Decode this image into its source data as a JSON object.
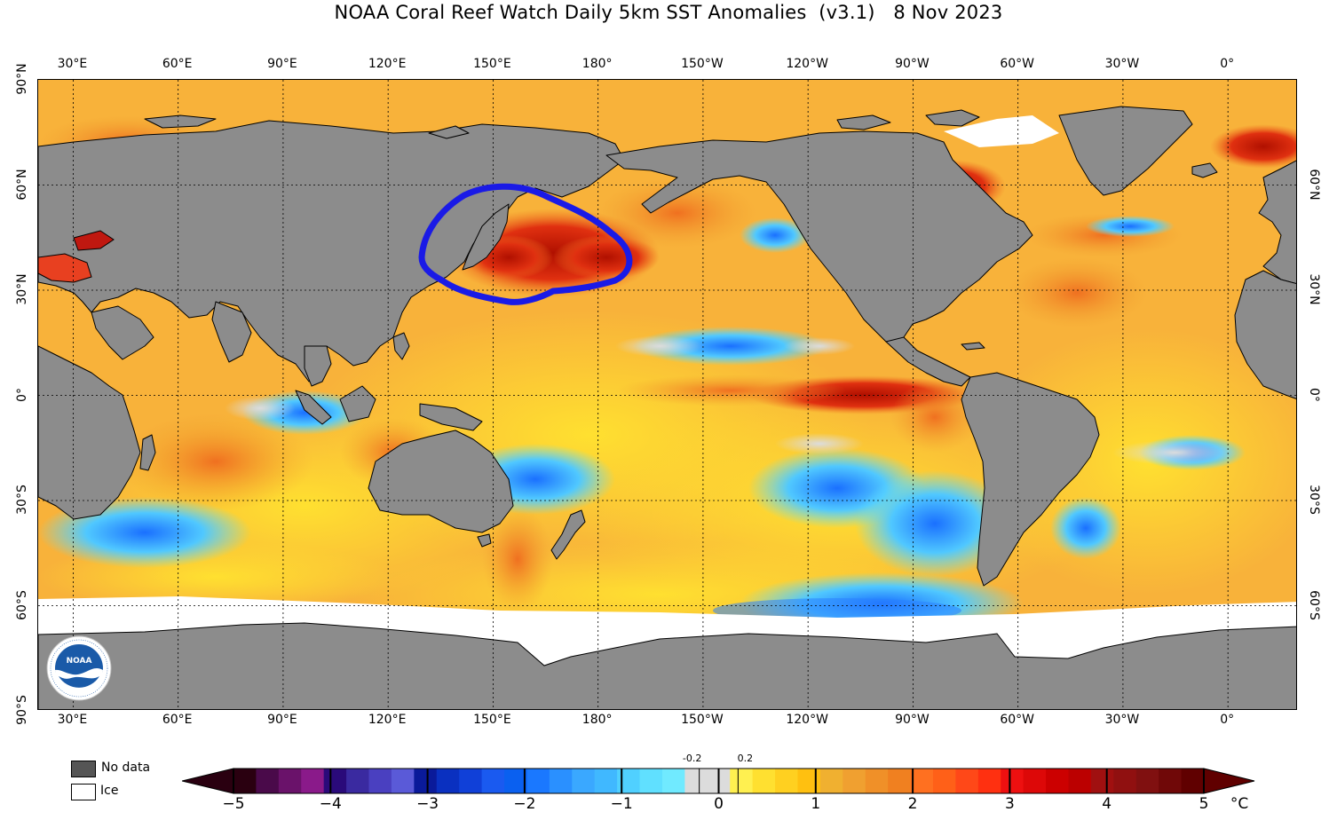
{
  "title": "NOAA Coral Reef Watch Daily 5km SST Anomalies  (v3.1)   8 Nov 2023",
  "map": {
    "lon_labels": [
      "30°E",
      "60°E",
      "90°E",
      "120°E",
      "150°E",
      "180°",
      "150°W",
      "120°W",
      "90°W",
      "60°W",
      "30°W",
      "0°"
    ],
    "lon_values": [
      30,
      60,
      90,
      120,
      150,
      180,
      210,
      240,
      270,
      300,
      330,
      360
    ],
    "lon_range": [
      20,
      380
    ],
    "lat_labels_left": [
      "90°N",
      "60°N",
      "30°N",
      "0°",
      "30°S",
      "60°S",
      "90°S"
    ],
    "lat_labels_right": [
      "60°N",
      "30°N",
      "0°",
      "30°S",
      "60°S"
    ],
    "lat_values_left": [
      90,
      60,
      30,
      0,
      -30,
      -60,
      -90
    ],
    "lat_values_right": [
      60,
      30,
      0,
      -30,
      -60
    ],
    "lat_range": [
      -90,
      90
    ],
    "land_color": "#8c8c8c",
    "ice_color": "#ffffff",
    "annotation_color": "#1a1ae6"
  },
  "legend": {
    "no_data_label": "No data",
    "no_data_color": "#555555",
    "ice_label": "Ice",
    "ice_color": "#ffffff"
  },
  "colorbar": {
    "unit": "°C",
    "ticks": [
      "−5",
      "−4",
      "−3",
      "−2",
      "−1",
      "0",
      "1",
      "2",
      "3",
      "4",
      "5"
    ],
    "small_ticks": [
      "-0.2",
      "0.2"
    ],
    "colors": [
      "#2a0010",
      "#4a0a4a",
      "#6a126a",
      "#8a1a8a",
      "#2a0a7a",
      "#3a2aa0",
      "#4a40c0",
      "#5a5ad8",
      "#0a1a9a",
      "#0a30c0",
      "#1040d8",
      "#1a5af0",
      "#0a60f0",
      "#1a78ff",
      "#2a90ff",
      "#3aa8ff",
      "#40b8ff",
      "#50d0ff",
      "#60e0ff",
      "#70eaff",
      "#dcdcdc",
      "#dcdcdc",
      "#fff050",
      "#ffe030",
      "#ffd020",
      "#ffc010",
      "#f0b030",
      "#f0a030",
      "#f09028",
      "#f08020",
      "#ff7020",
      "#ff6018",
      "#ff4818",
      "#ff3010",
      "#ee1010",
      "#dd0808",
      "#cc0000",
      "#bb0000",
      "#a01010",
      "#901010",
      "#801010",
      "#700808",
      "#600000"
    ]
  }
}
